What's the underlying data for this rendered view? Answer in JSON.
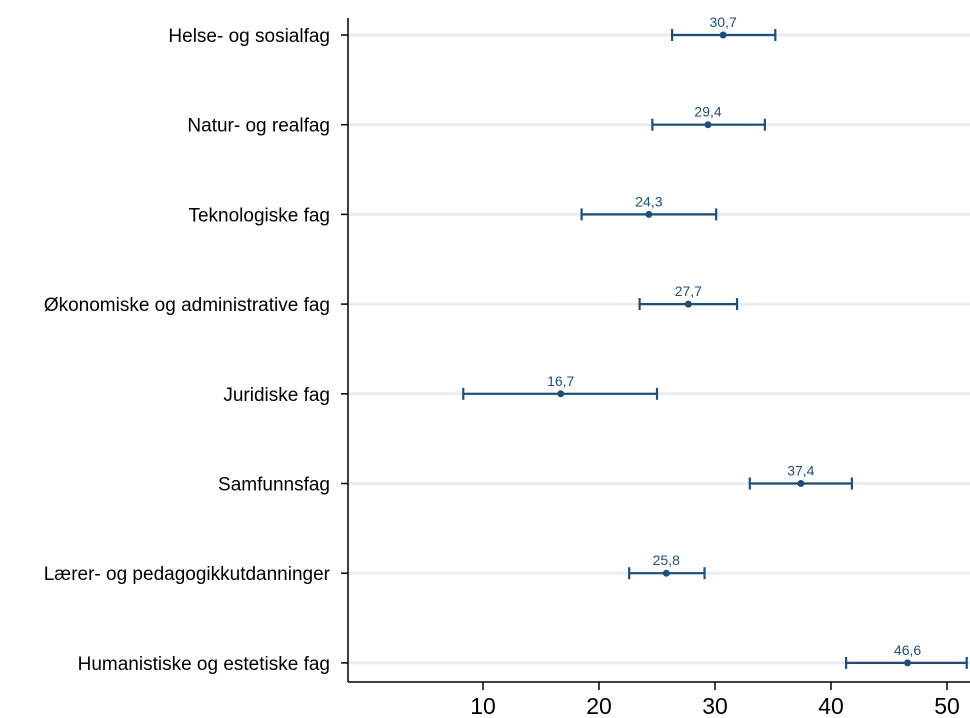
{
  "chart_data": {
    "type": "dot-errorbar",
    "title": "",
    "xlabel": "",
    "ylabel": "",
    "xlim": [
      0,
      52
    ],
    "x_ticks": [
      10,
      20,
      30,
      40,
      50
    ],
    "x_tick_labels": [
      "10",
      "20",
      "30",
      "40",
      "50"
    ],
    "grid": "horizontal",
    "categories": [
      "Helse- og sosialfag",
      "Natur- og realfag",
      "Teknologiske fag",
      "Økonomiske og administrative fag",
      "Juridiske fag",
      "Samfunnsfag",
      "Lærer- og pedagogikkutdanninger",
      "Humanistiske og estetiske fag"
    ],
    "values": [
      30.7,
      29.4,
      24.3,
      27.7,
      16.7,
      37.4,
      25.8,
      46.6
    ],
    "value_labels": [
      "30,7",
      "29,4",
      "24,3",
      "27,7",
      "16,7",
      "37,4",
      "25,8",
      "46,6"
    ],
    "ci_low": [
      26.3,
      24.6,
      18.5,
      23.5,
      8.3,
      33.0,
      22.6,
      41.3
    ],
    "ci_high": [
      35.2,
      34.3,
      30.1,
      31.9,
      25.0,
      41.8,
      29.1,
      51.7
    ],
    "colors": {
      "series": "#1f4e79",
      "grid": "#e6eef3",
      "axis": "#000000"
    }
  }
}
